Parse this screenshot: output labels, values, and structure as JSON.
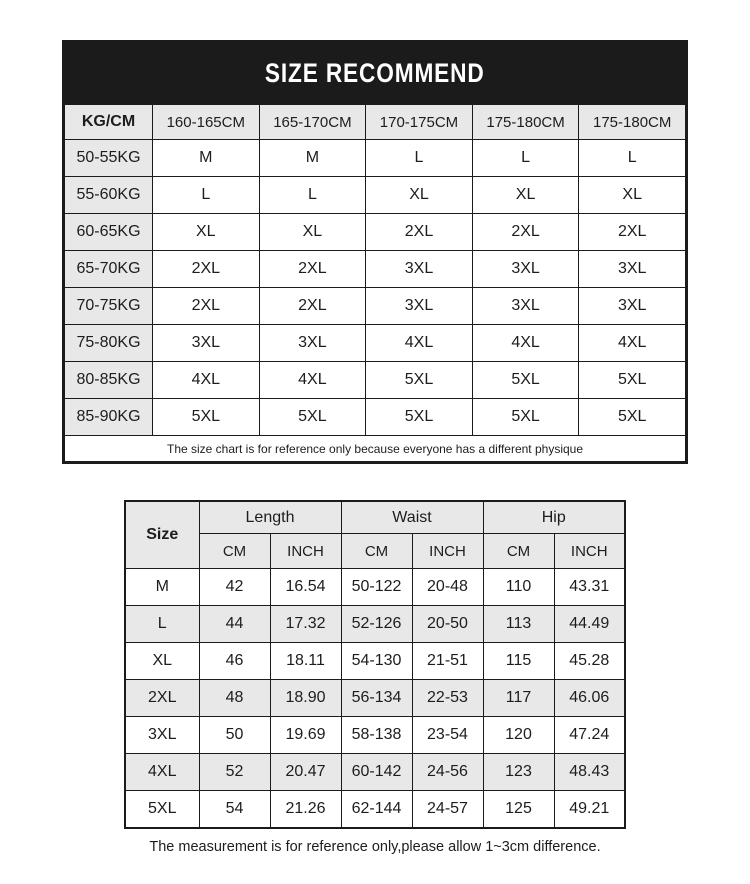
{
  "size_recommend": {
    "title": "SIZE RECOMMEND",
    "header": [
      "KG/CM",
      "160-165CM",
      "165-170CM",
      "170-175CM",
      "175-180CM",
      "175-180CM"
    ],
    "rows": [
      [
        "50-55KG",
        "M",
        "M",
        "L",
        "L",
        "L"
      ],
      [
        "55-60KG",
        "L",
        "L",
        "XL",
        "XL",
        "XL"
      ],
      [
        "60-65KG",
        "XL",
        "XL",
        "2XL",
        "2XL",
        "2XL"
      ],
      [
        "65-70KG",
        "2XL",
        "2XL",
        "3XL",
        "3XL",
        "3XL"
      ],
      [
        "70-75KG",
        "2XL",
        "2XL",
        "3XL",
        "3XL",
        "3XL"
      ],
      [
        "75-80KG",
        "3XL",
        "3XL",
        "4XL",
        "4XL",
        "4XL"
      ],
      [
        "80-85KG",
        "4XL",
        "4XL",
        "5XL",
        "5XL",
        "5XL"
      ],
      [
        "85-90KG",
        "5XL",
        "5XL",
        "5XL",
        "5XL",
        "5XL"
      ]
    ],
    "note": "The size chart is for reference only because everyone has a different physique"
  },
  "measurements": {
    "size_label": "Size",
    "groups": [
      "Length",
      "Waist",
      "Hip"
    ],
    "units": [
      "CM",
      "INCH",
      "CM",
      "INCH",
      "CM",
      "INCH"
    ],
    "rows": [
      [
        "M",
        "42",
        "16.54",
        "50-122",
        "20-48",
        "110",
        "43.31"
      ],
      [
        "L",
        "44",
        "17.32",
        "52-126",
        "20-50",
        "113",
        "44.49"
      ],
      [
        "XL",
        "46",
        "18.11",
        "54-130",
        "21-51",
        "115",
        "45.28"
      ],
      [
        "2XL",
        "48",
        "18.90",
        "56-134",
        "22-53",
        "117",
        "46.06"
      ],
      [
        "3XL",
        "50",
        "19.69",
        "58-138",
        "23-54",
        "120",
        "47.24"
      ],
      [
        "4XL",
        "52",
        "20.47",
        "60-142",
        "24-56",
        "123",
        "48.43"
      ],
      [
        "5XL",
        "54",
        "21.26",
        "62-144",
        "24-57",
        "125",
        "49.21"
      ]
    ],
    "note": "The measurement is for reference only,please allow 1~3cm difference."
  },
  "colors": {
    "title_band": "#1b1b1b",
    "cell_shade": "#e8e8e8",
    "border": "#1b1b1b",
    "title_text": "#ffffff"
  }
}
